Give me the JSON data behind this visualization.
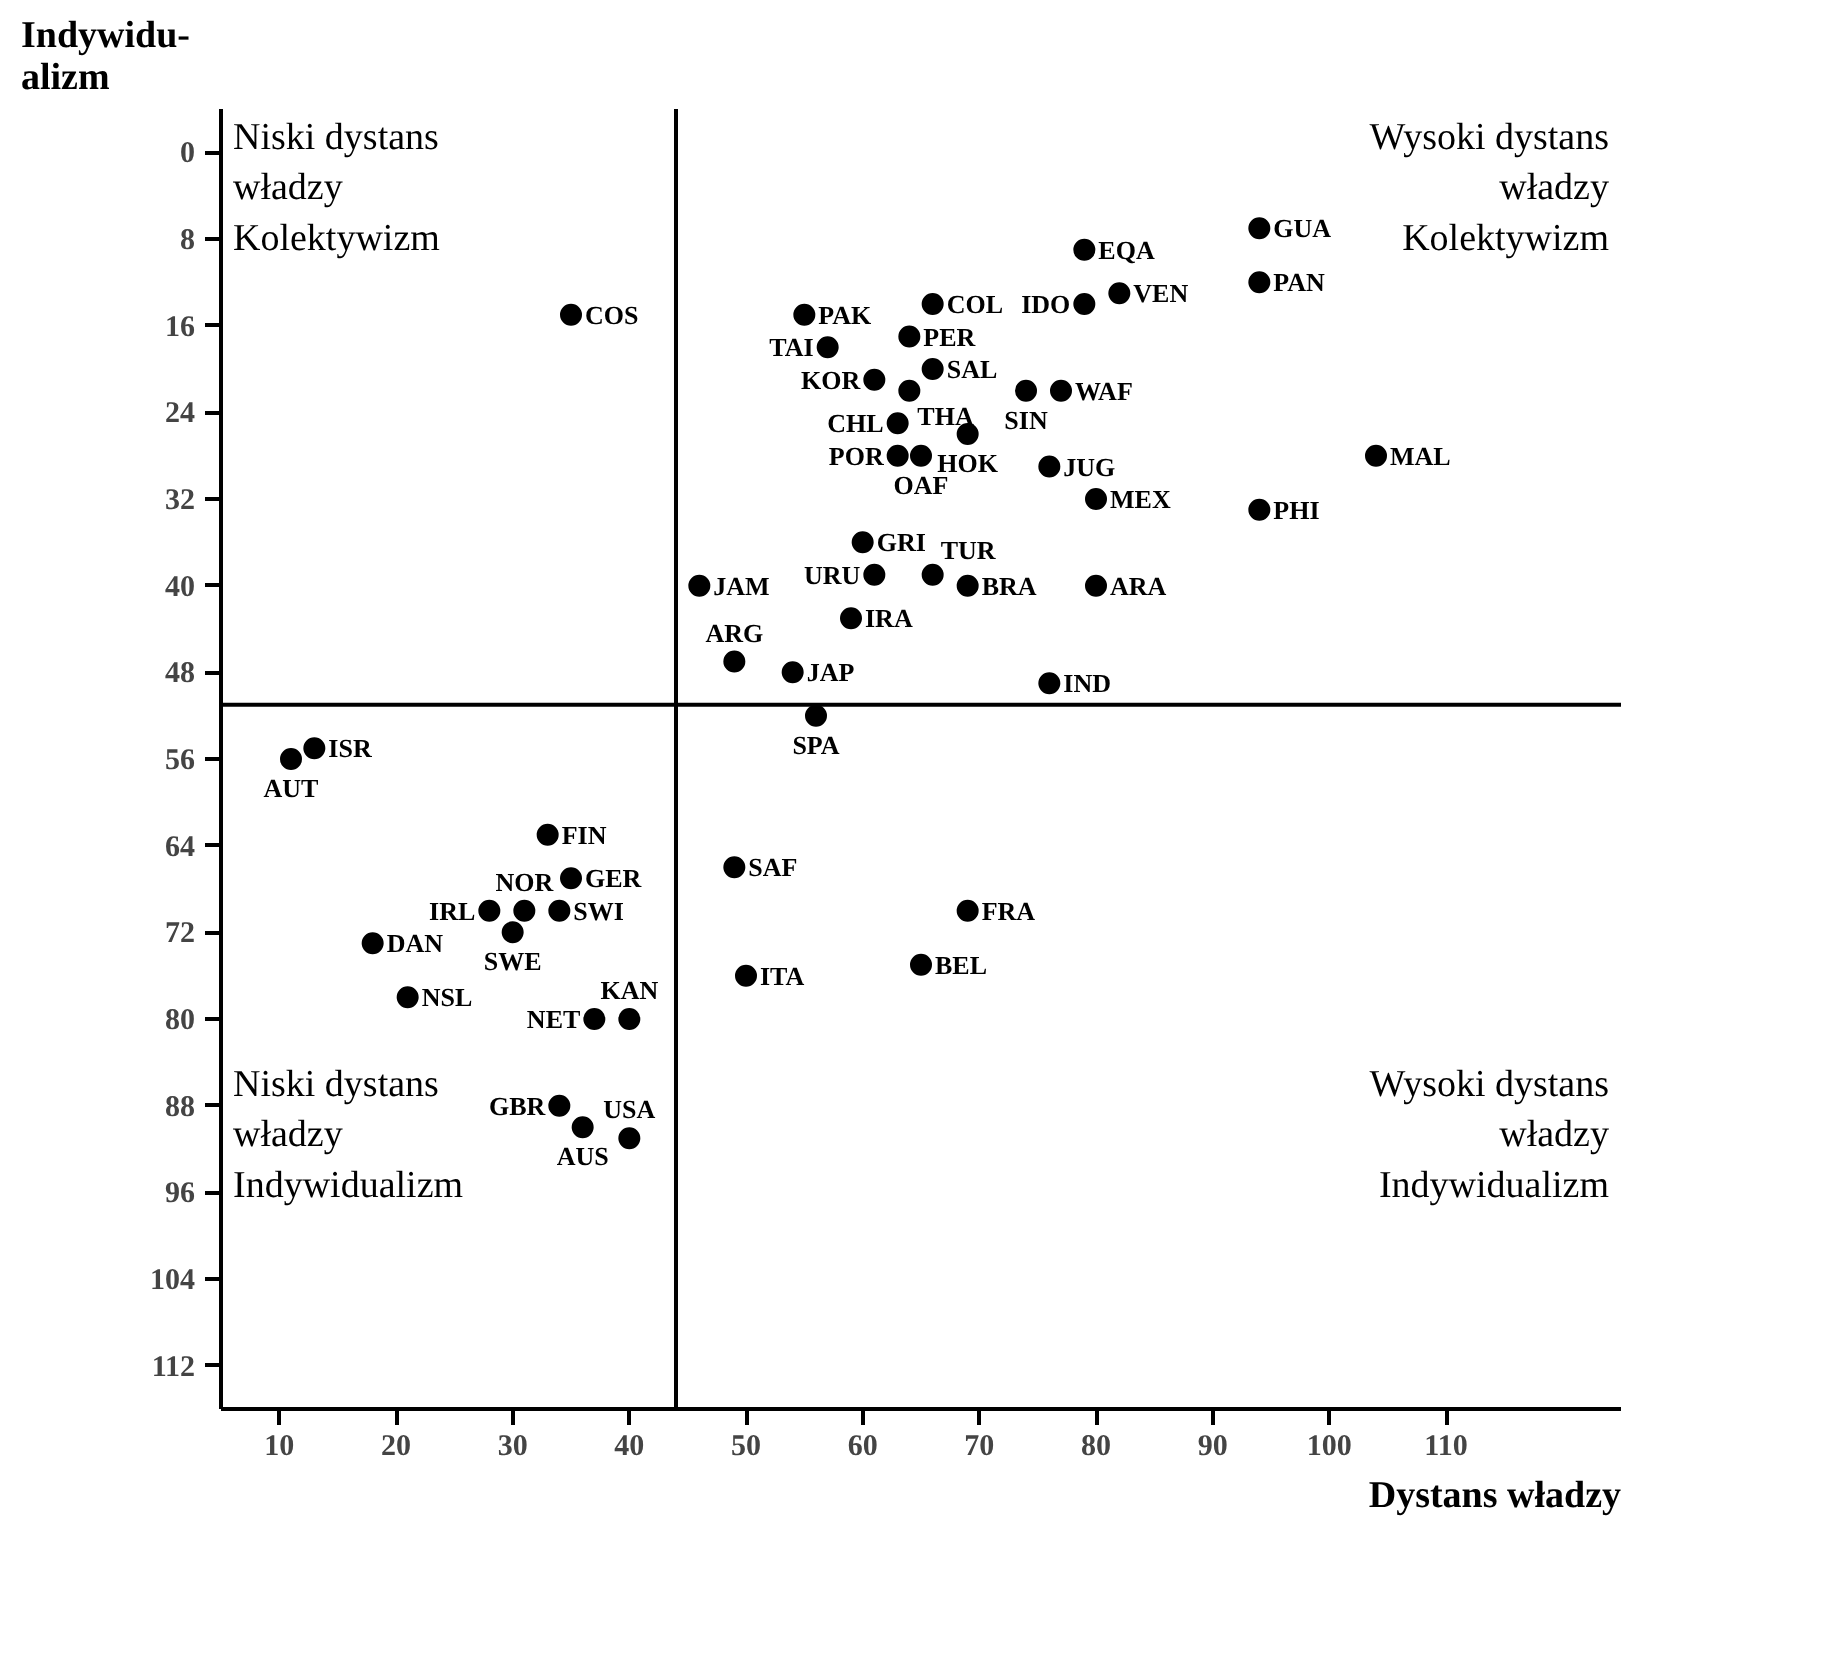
{
  "chart_data": {
    "type": "scatter",
    "xlabel": "Dystans władzy",
    "ylabel": "Indywidu-\nalizm",
    "xlim": [
      5,
      125
    ],
    "ylim": [
      116,
      -4
    ],
    "xticks": [
      10,
      20,
      30,
      40,
      50,
      60,
      70,
      80,
      90,
      100,
      110
    ],
    "yticks": [
      0,
      8,
      16,
      24,
      32,
      40,
      48,
      56,
      64,
      72,
      80,
      88,
      96,
      104,
      112
    ],
    "grid": false,
    "marker": "circle",
    "x": [
      79,
      94,
      94,
      66,
      82,
      79,
      55,
      64,
      57,
      66,
      61,
      74,
      77,
      64,
      63,
      69,
      63,
      65,
      76,
      80,
      104,
      94,
      35,
      60,
      61,
      66,
      46,
      69,
      80,
      59,
      49,
      54,
      76,
      56,
      49,
      69,
      65,
      50,
      11,
      13,
      33,
      35,
      31,
      34,
      28,
      30,
      18,
      21,
      37,
      40,
      34,
      36,
      40
    ],
    "series": [
      {
        "color": "#000000",
        "values": [
          9,
          7,
          12,
          14,
          13,
          14,
          15,
          17,
          18,
          20,
          21,
          22,
          22,
          22,
          25,
          26,
          28,
          28,
          29,
          32,
          28,
          33,
          15,
          36,
          39,
          39,
          40,
          40,
          40,
          43,
          47,
          48,
          49,
          52,
          66,
          70,
          75,
          76,
          56,
          55,
          63,
          67,
          70,
          70,
          70,
          72,
          73,
          78,
          80,
          80,
          88,
          90,
          91
        ]
      }
    ],
    "ref_lines": [
      {
        "axis": "x",
        "value": 44,
        "color": "#000000"
      },
      {
        "axis": "y",
        "value": 51,
        "color": "#000000"
      }
    ],
    "annotations": [
      "Niski dystans\nwładzy\nKolektywizm",
      "Wysoki dystans\nwładzy\nKolektywizm",
      "Niski dystans\nwładzy\nIndywidualizm",
      "Wysoki dystans\nwładzy\nIndywidualizm",
      {
        "text": "EQA",
        "x": 79,
        "y": 9
      },
      {
        "text": "GUA",
        "x": 94,
        "y": 7
      },
      {
        "text": "PAN",
        "x": 94,
        "y": 12
      },
      {
        "text": "COL",
        "x": 66,
        "y": 14
      },
      {
        "text": "VEN",
        "x": 82,
        "y": 13
      },
      {
        "text": "IDO",
        "x": 79,
        "y": 14
      },
      {
        "text": "PAK",
        "x": 55,
        "y": 15
      },
      {
        "text": "PER",
        "x": 64,
        "y": 17
      },
      {
        "text": "TAI",
        "x": 57,
        "y": 18
      },
      {
        "text": "SAL",
        "x": 66,
        "y": 20
      },
      {
        "text": "KOR",
        "x": 61,
        "y": 21
      },
      {
        "text": "SIN",
        "x": 74,
        "y": 22
      },
      {
        "text": "WAF",
        "x": 77,
        "y": 22
      },
      {
        "text": "THA",
        "x": 64,
        "y": 22
      },
      {
        "text": "CHL",
        "x": 63,
        "y": 25
      },
      {
        "text": "HOK",
        "x": 69,
        "y": 26
      },
      {
        "text": "POR",
        "x": 63,
        "y": 28
      },
      {
        "text": "OAF",
        "x": 65,
        "y": 28
      },
      {
        "text": "JUG",
        "x": 76,
        "y": 29
      },
      {
        "text": "MEX",
        "x": 80,
        "y": 32
      },
      {
        "text": "MAL",
        "x": 104,
        "y": 28
      },
      {
        "text": "PHI",
        "x": 94,
        "y": 33
      },
      {
        "text": "COS",
        "x": 35,
        "y": 15
      },
      {
        "text": "GRI",
        "x": 60,
        "y": 36
      },
      {
        "text": "URU",
        "x": 61,
        "y": 39
      },
      {
        "text": "TUR",
        "x": 66,
        "y": 39
      },
      {
        "text": "JAM",
        "x": 46,
        "y": 40
      },
      {
        "text": "BRA",
        "x": 69,
        "y": 40
      },
      {
        "text": "ARA",
        "x": 80,
        "y": 40
      },
      {
        "text": "IRA",
        "x": 59,
        "y": 43
      },
      {
        "text": "ARG",
        "x": 49,
        "y": 47
      },
      {
        "text": "JAP",
        "x": 54,
        "y": 48
      },
      {
        "text": "IND",
        "x": 76,
        "y": 49
      },
      {
        "text": "SPA",
        "x": 56,
        "y": 52
      },
      {
        "text": "SAF",
        "x": 49,
        "y": 66
      },
      {
        "text": "FRA",
        "x": 69,
        "y": 70
      },
      {
        "text": "BEL",
        "x": 65,
        "y": 75
      },
      {
        "text": "ITA",
        "x": 50,
        "y": 76
      },
      {
        "text": "AUT",
        "x": 11,
        "y": 56
      },
      {
        "text": "ISR",
        "x": 13,
        "y": 55
      },
      {
        "text": "FIN",
        "x": 33,
        "y": 63
      },
      {
        "text": "GER",
        "x": 35,
        "y": 67
      },
      {
        "text": "NOR",
        "x": 31,
        "y": 70
      },
      {
        "text": "SWI",
        "x": 34,
        "y": 70
      },
      {
        "text": "IRL",
        "x": 28,
        "y": 70
      },
      {
        "text": "SWE",
        "x": 30,
        "y": 72
      },
      {
        "text": "DAN",
        "x": 18,
        "y": 73
      },
      {
        "text": "NSL",
        "x": 21,
        "y": 78
      },
      {
        "text": "NET",
        "x": 37,
        "y": 80
      },
      {
        "text": "KAN",
        "x": 40,
        "y": 80
      },
      {
        "text": "GBR",
        "x": 34,
        "y": 88
      },
      {
        "text": "AUS",
        "x": 36,
        "y": 90
      },
      {
        "text": "USA",
        "x": 40,
        "y": 91
      }
    ]
  }
}
